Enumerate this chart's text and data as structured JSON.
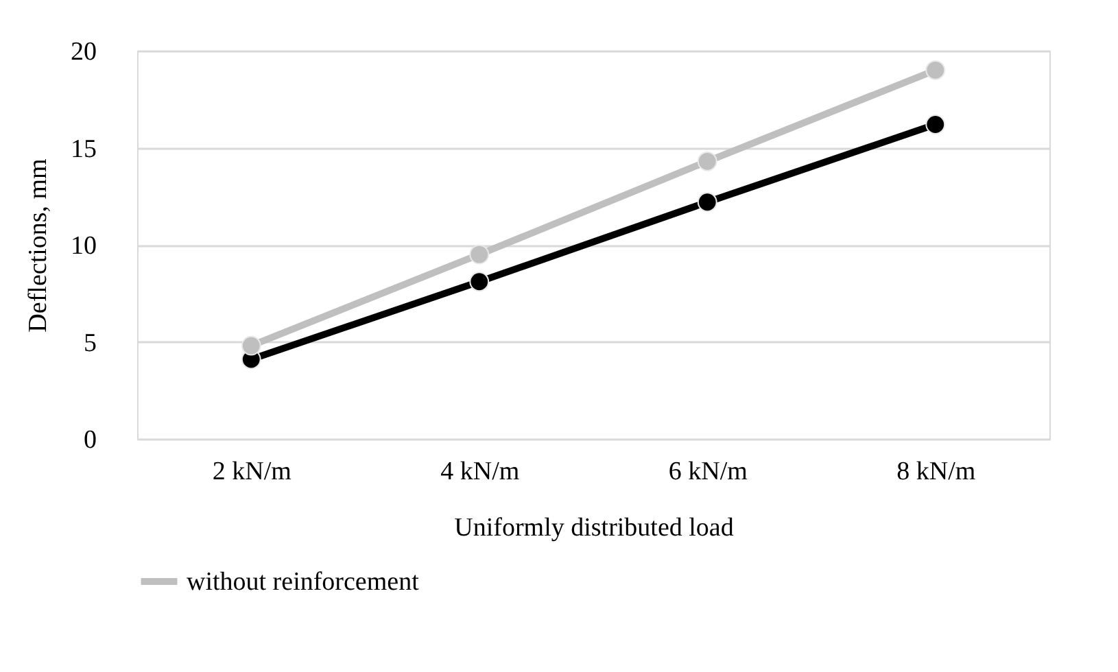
{
  "chart_data": {
    "type": "line",
    "xlabel": "Uniformly distributed load",
    "ylabel": "Deflections, mm",
    "categories": [
      "2 kN/m",
      "4 kN/m",
      "6 kN/m",
      "8 kN/m"
    ],
    "series": [
      {
        "name": "without reinforcement",
        "color": "#bfbfbf",
        "values": [
          4.8,
          9.5,
          14.3,
          19.0
        ]
      },
      {
        "color": "#000000",
        "values": [
          4.1,
          8.1,
          12.2,
          16.2
        ]
      }
    ],
    "ylim": [
      0,
      20
    ],
    "yticks": [
      0,
      5,
      10,
      15,
      20
    ],
    "grid": "y",
    "legend": "bottom",
    "marker": "circle",
    "line_style": "solid"
  }
}
